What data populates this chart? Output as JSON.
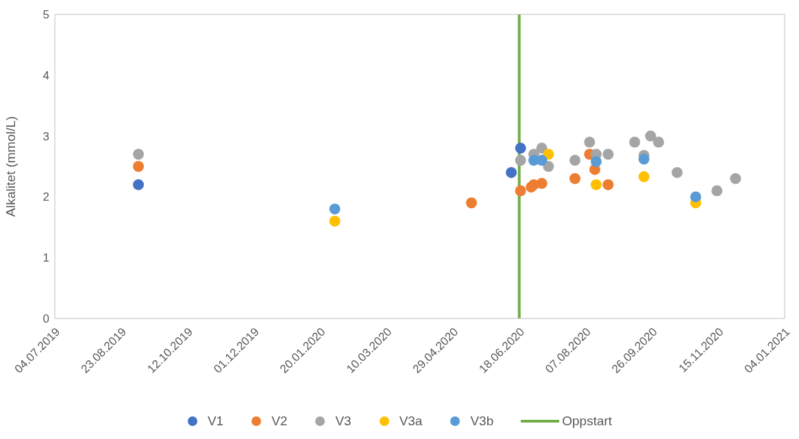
{
  "chart_data": {
    "type": "scatter",
    "ylabel": "Alkalitet (mmol/L)",
    "xlim": [
      "2019-07-04",
      "2021-01-04"
    ],
    "xticks": [
      {
        "value": "2019-07-04",
        "label": "04.07.2019"
      },
      {
        "value": "2019-08-23",
        "label": "23.08.2019"
      },
      {
        "value": "2019-10-12",
        "label": "12.10.2019"
      },
      {
        "value": "2019-12-01",
        "label": "01.12.2019"
      },
      {
        "value": "2020-01-20",
        "label": "20.01.2020"
      },
      {
        "value": "2020-03-10",
        "label": "10.03.2020"
      },
      {
        "value": "2020-04-29",
        "label": "29.04.2020"
      },
      {
        "value": "2020-06-18",
        "label": "18.06.2020"
      },
      {
        "value": "2020-08-07",
        "label": "07.08.2020"
      },
      {
        "value": "2020-09-26",
        "label": "26.09.2020"
      },
      {
        "value": "2020-11-15",
        "label": "15.11.2020"
      },
      {
        "value": "2021-01-04",
        "label": "04.01.2021"
      }
    ],
    "ylim": [
      0,
      5
    ],
    "yticks": [
      0,
      1,
      2,
      3,
      4,
      5
    ],
    "marker": "circle",
    "legend": "bottom",
    "series": [
      {
        "name": "V1",
        "color": "#4472c4",
        "x": [
          "2019-09-05",
          "2020-06-12",
          "2020-06-19"
        ],
        "values": [
          2.2,
          2.4,
          2.8
        ]
      },
      {
        "name": "V2",
        "color": "#ed7d31",
        "x": [
          "2019-09-05",
          "2020-05-13",
          "2020-06-19",
          "2020-06-27",
          "2020-06-29",
          "2020-07-05",
          "2020-07-30",
          "2020-08-10",
          "2020-08-14",
          "2020-08-24"
        ],
        "values": [
          2.5,
          1.9,
          2.1,
          2.16,
          2.2,
          2.22,
          2.3,
          2.7,
          2.45,
          2.2
        ]
      },
      {
        "name": "V3",
        "color": "#a5a5a5",
        "x": [
          "2019-09-05",
          "2020-06-19",
          "2020-06-29",
          "2020-07-05",
          "2020-07-10",
          "2020-07-30",
          "2020-08-10",
          "2020-08-15",
          "2020-08-24",
          "2020-09-13",
          "2020-09-20",
          "2020-09-25",
          "2020-10-01",
          "2020-10-15",
          "2020-11-14",
          "2020-11-28"
        ],
        "values": [
          2.7,
          2.6,
          2.7,
          2.8,
          2.5,
          2.6,
          2.9,
          2.7,
          2.7,
          2.9,
          2.68,
          3.0,
          2.9,
          2.4,
          2.1,
          2.3
        ]
      },
      {
        "name": "V3a",
        "color": "#ffc000",
        "x": [
          "2020-01-31",
          "2020-07-10",
          "2020-08-15",
          "2020-09-20",
          "2020-10-29"
        ],
        "values": [
          1.6,
          2.7,
          2.2,
          2.33,
          1.9
        ]
      },
      {
        "name": "V3b",
        "color": "#5b9bd5",
        "x": [
          "2020-01-31",
          "2020-06-29",
          "2020-07-05",
          "2020-08-15",
          "2020-09-20",
          "2020-10-29"
        ],
        "values": [
          1.8,
          2.6,
          2.6,
          2.58,
          2.62,
          2.0
        ]
      }
    ],
    "ref_lines": [
      {
        "axis": "x",
        "value": "2020-06-18",
        "label": "Oppstart",
        "color": "#70ad47",
        "line_style": "solid"
      }
    ]
  }
}
